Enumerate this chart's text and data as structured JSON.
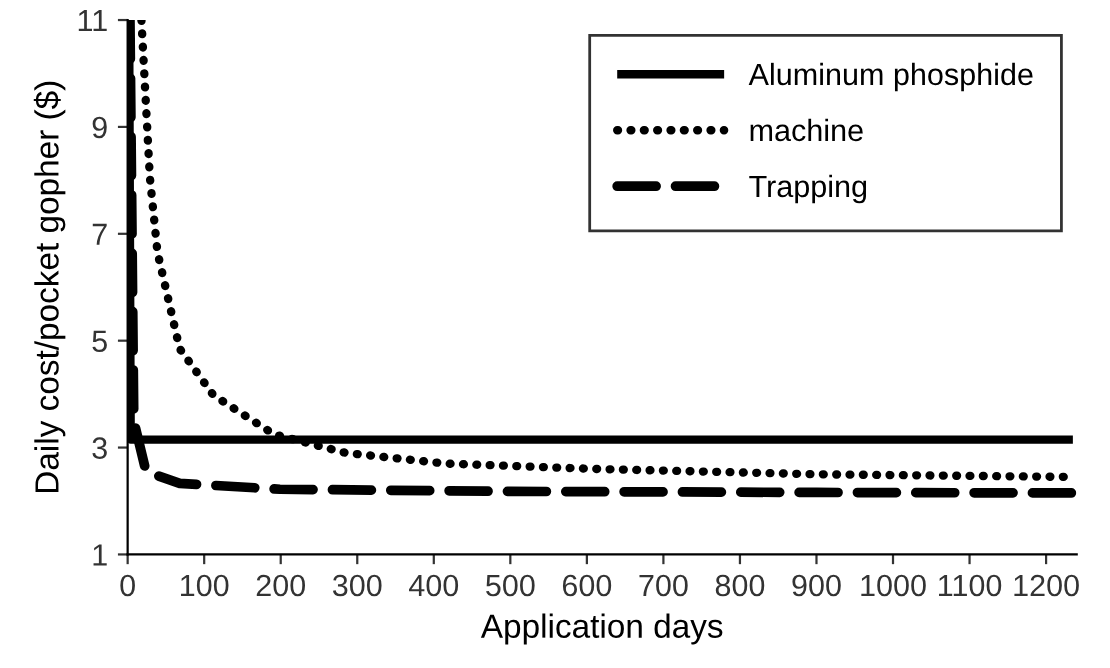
{
  "chart_data": {
    "type": "line",
    "xlabel": "Application days",
    "ylabel": "Daily cost/pocket gopher ($)",
    "xlim": [
      0,
      1240
    ],
    "xticks": [
      0,
      100,
      200,
      300,
      400,
      500,
      600,
      700,
      800,
      900,
      1000,
      1100,
      1200
    ],
    "ylim": [
      1,
      11
    ],
    "yticks": [
      1,
      3,
      5,
      7,
      9,
      11
    ],
    "grid": false,
    "legend": "top right",
    "series": [
      {
        "name": "Aluminum phosphide",
        "color": "#000000",
        "line_style": "solid",
        "x": [
          2,
          4,
          100,
          500,
          1000,
          1235
        ],
        "values": [
          11,
          3.15,
          3.15,
          3.15,
          3.15,
          3.15
        ]
      },
      {
        "name": "machine",
        "color": "#000000",
        "line_style": "dotted",
        "x": [
          18,
          29,
          39,
          68,
          112,
          191,
          285,
          416,
          610,
          900,
          1235
        ],
        "values": [
          11,
          8.06,
          6.65,
          4.85,
          3.98,
          3.25,
          2.9,
          2.7,
          2.6,
          2.5,
          2.45
        ]
      },
      {
        "name": "Trapping",
        "color": "#000000",
        "line_style": "dashed",
        "x": [
          3,
          8,
          24,
          68,
          199,
          500,
          900,
          1235
        ],
        "values": [
          11,
          3.5,
          2.55,
          2.33,
          2.22,
          2.18,
          2.16,
          2.15
        ]
      }
    ]
  }
}
